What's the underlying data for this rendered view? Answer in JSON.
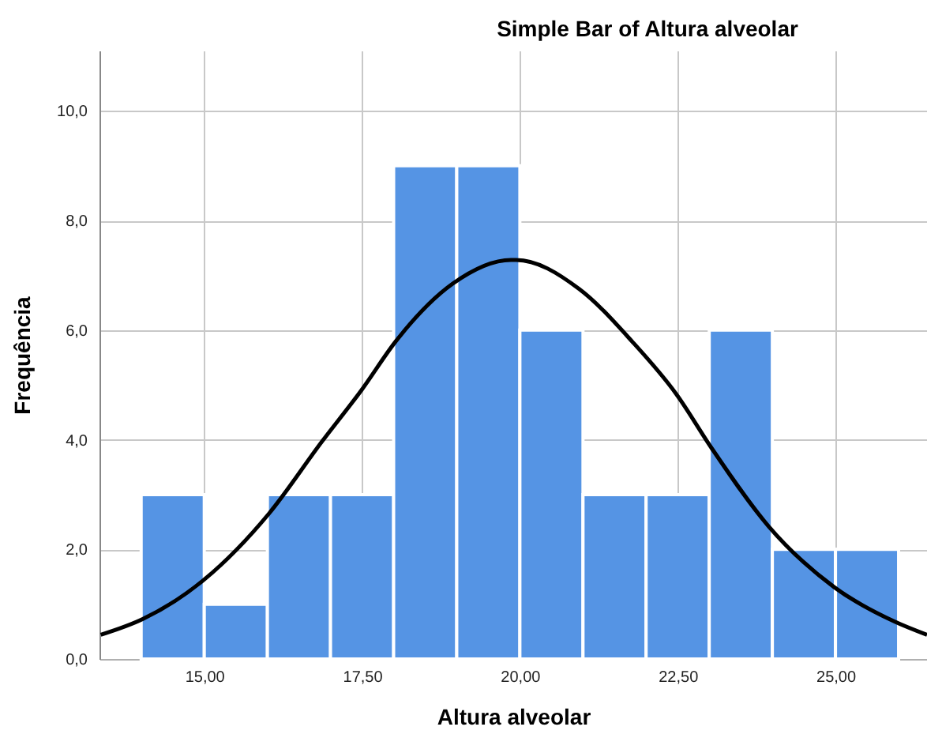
{
  "chart_data": {
    "type": "histogram",
    "title": "Simple Bar of Altura alveolar",
    "xlabel": "Altura alveolar",
    "ylabel": "Frequência",
    "bins": [
      14,
      15,
      16,
      17,
      18,
      19,
      20,
      21,
      22,
      23,
      24,
      25,
      26
    ],
    "values": [
      3,
      1,
      3,
      3,
      9,
      9,
      6,
      3,
      3,
      6,
      2,
      2
    ],
    "color": "#5594e4",
    "series": [
      {
        "type": "line",
        "color": "#000000",
        "x": [
          13.36,
          14.03,
          15.0,
          16.03,
          16.86,
          17.5,
          18.03,
          18.94,
          19.86,
          19.94,
          20.94,
          21.78,
          22.48,
          23.03,
          23.94,
          24.98,
          25.94,
          26.45
        ],
        "values": [
          0.44,
          0.73,
          1.45,
          2.66,
          3.96,
          4.92,
          5.79,
          6.85,
          7.28,
          7.28,
          6.75,
          5.79,
          4.83,
          3.86,
          2.42,
          1.31,
          0.68,
          0.44
        ]
      }
    ],
    "xlim": [
      13.34,
      26.45
    ],
    "ylim": [
      0,
      11.1
    ],
    "xticks": [
      {
        "value": 15,
        "label": "15,00"
      },
      {
        "value": 17.5,
        "label": "17,50"
      },
      {
        "value": 20,
        "label": "20,00"
      },
      {
        "value": 22.5,
        "label": "22,50"
      },
      {
        "value": 25,
        "label": "25,00"
      }
    ],
    "yticks": [
      {
        "value": 0,
        "label": "0,0"
      },
      {
        "value": 2,
        "label": "2,0"
      },
      {
        "value": 4,
        "label": "4,0"
      },
      {
        "value": 6,
        "label": "6,0"
      },
      {
        "value": 8,
        "label": "8,0"
      },
      {
        "value": 10,
        "label": "10,0"
      }
    ],
    "grid": true
  }
}
